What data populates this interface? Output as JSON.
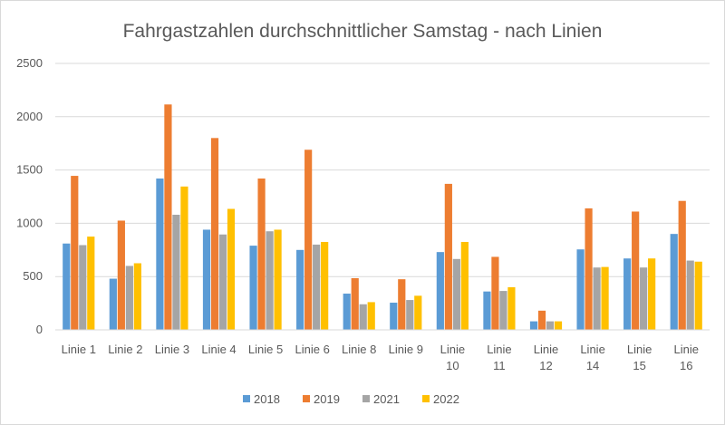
{
  "chart_data": {
    "type": "bar",
    "title": "Fahrgastzahlen durchschnittlicher Samstag - nach Linien",
    "xlabel": "",
    "ylabel": "",
    "ylim": [
      0,
      2500
    ],
    "yticks": [
      0,
      500,
      1000,
      1500,
      2000,
      2500
    ],
    "grid": true,
    "legend_position": "bottom",
    "categories": [
      "Linie 1",
      "Linie 2",
      "Linie 3",
      "Linie 4",
      "Linie 5",
      "Linie 6",
      "Linie 8",
      "Linie 9",
      "Linie 10",
      "Linie 11",
      "Linie 12",
      "Linie 14",
      "Linie 15",
      "Linie 16"
    ],
    "series": [
      {
        "name": "2018",
        "color": "#5b9bd5",
        "values": [
          810,
          480,
          1420,
          940,
          790,
          750,
          340,
          255,
          730,
          360,
          80,
          755,
          670,
          900
        ]
      },
      {
        "name": "2019",
        "color": "#ed7d31",
        "values": [
          1445,
          1025,
          2115,
          1800,
          1420,
          1690,
          485,
          475,
          1370,
          685,
          180,
          1140,
          1110,
          1210
        ]
      },
      {
        "name": "2021",
        "color": "#a5a5a5",
        "values": [
          795,
          600,
          1080,
          895,
          925,
          800,
          240,
          280,
          665,
          365,
          80,
          585,
          585,
          650
        ]
      },
      {
        "name": "2022",
        "color": "#ffc000",
        "values": [
          875,
          625,
          1345,
          1135,
          940,
          825,
          260,
          320,
          825,
          400,
          80,
          590,
          670,
          640
        ]
      }
    ]
  }
}
